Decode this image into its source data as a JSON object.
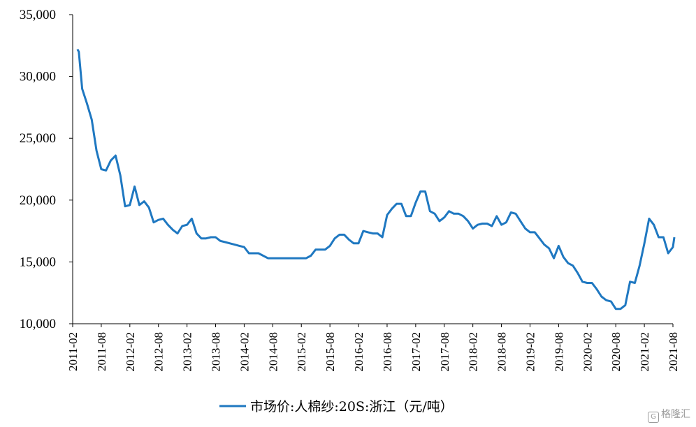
{
  "chart_data": {
    "type": "line",
    "title": "",
    "xlabel": "",
    "ylabel": "",
    "ylim": [
      10000,
      35000
    ],
    "y_ticks": [
      "10,000",
      "15,000",
      "20,000",
      "25,000",
      "30,000",
      "35,000"
    ],
    "x_ticks": [
      "2011-02",
      "2011-08",
      "2012-02",
      "2012-08",
      "2013-02",
      "2013-08",
      "2014-02",
      "2014-08",
      "2015-02",
      "2015-08",
      "2016-02",
      "2016-08",
      "2017-02",
      "2017-08",
      "2018-02",
      "2018-08",
      "2019-02",
      "2019-08",
      "2020-02",
      "2020-08",
      "2021-02",
      "2021-08"
    ],
    "grid": false,
    "legend_position": "bottom-center",
    "series": [
      {
        "name": "市场价:人棉纱:20S:浙江（元/吨）",
        "color": "#1f78c1",
        "points": [
          [
            "2011-03",
            32200
          ],
          [
            "2011-03",
            32000
          ],
          [
            "2011-04",
            29000
          ],
          [
            "2011-05",
            27800
          ],
          [
            "2011-06",
            26500
          ],
          [
            "2011-07",
            24000
          ],
          [
            "2011-08",
            22500
          ],
          [
            "2011-09",
            22400
          ],
          [
            "2011-10",
            23200
          ],
          [
            "2011-11",
            23600
          ],
          [
            "2011-12",
            22000
          ],
          [
            "2012-01",
            19500
          ],
          [
            "2012-02",
            19600
          ],
          [
            "2012-03",
            21100
          ],
          [
            "2012-04",
            19600
          ],
          [
            "2012-05",
            19900
          ],
          [
            "2012-06",
            19400
          ],
          [
            "2012-07",
            18200
          ],
          [
            "2012-08",
            18400
          ],
          [
            "2012-09",
            18500
          ],
          [
            "2012-10",
            18000
          ],
          [
            "2012-11",
            17600
          ],
          [
            "2012-12",
            17300
          ],
          [
            "2013-01",
            17900
          ],
          [
            "2013-02",
            18000
          ],
          [
            "2013-03",
            18500
          ],
          [
            "2013-04",
            17300
          ],
          [
            "2013-05",
            16900
          ],
          [
            "2013-06",
            16900
          ],
          [
            "2013-07",
            17000
          ],
          [
            "2013-08",
            17000
          ],
          [
            "2013-09",
            16700
          ],
          [
            "2013-10",
            16600
          ],
          [
            "2013-11",
            16500
          ],
          [
            "2013-12",
            16400
          ],
          [
            "2014-01",
            16300
          ],
          [
            "2014-02",
            16200
          ],
          [
            "2014-03",
            15700
          ],
          [
            "2014-05",
            15700
          ],
          [
            "2014-07",
            15300
          ],
          [
            "2014-09",
            15300
          ],
          [
            "2014-12",
            15300
          ],
          [
            "2015-03",
            15300
          ],
          [
            "2015-04",
            15500
          ],
          [
            "2015-05",
            16000
          ],
          [
            "2015-07",
            16000
          ],
          [
            "2015-08",
            16300
          ],
          [
            "2015-09",
            16900
          ],
          [
            "2015-10",
            17200
          ],
          [
            "2015-11",
            17200
          ],
          [
            "2015-12",
            16800
          ],
          [
            "2016-01",
            16500
          ],
          [
            "2016-02",
            16500
          ],
          [
            "2016-03",
            17500
          ],
          [
            "2016-04",
            17400
          ],
          [
            "2016-05",
            17300
          ],
          [
            "2016-06",
            17300
          ],
          [
            "2016-07",
            17000
          ],
          [
            "2016-08",
            18800
          ],
          [
            "2016-09",
            19300
          ],
          [
            "2016-10",
            19700
          ],
          [
            "2016-11",
            19700
          ],
          [
            "2016-12",
            18700
          ],
          [
            "2017-01",
            18700
          ],
          [
            "2017-02",
            19800
          ],
          [
            "2017-03",
            20700
          ],
          [
            "2017-04",
            20700
          ],
          [
            "2017-05",
            19100
          ],
          [
            "2017-06",
            18900
          ],
          [
            "2017-07",
            18300
          ],
          [
            "2017-08",
            18600
          ],
          [
            "2017-09",
            19100
          ],
          [
            "2017-10",
            18900
          ],
          [
            "2017-11",
            18900
          ],
          [
            "2017-12",
            18700
          ],
          [
            "2018-01",
            18300
          ],
          [
            "2018-02",
            17700
          ],
          [
            "2018-03",
            18000
          ],
          [
            "2018-04",
            18100
          ],
          [
            "2018-05",
            18100
          ],
          [
            "2018-06",
            17900
          ],
          [
            "2018-07",
            18700
          ],
          [
            "2018-08",
            18000
          ],
          [
            "2018-09",
            18200
          ],
          [
            "2018-10",
            19000
          ],
          [
            "2018-11",
            18900
          ],
          [
            "2018-12",
            18300
          ],
          [
            "2019-01",
            17700
          ],
          [
            "2019-02",
            17400
          ],
          [
            "2019-03",
            17400
          ],
          [
            "2019-04",
            16900
          ],
          [
            "2019-05",
            16400
          ],
          [
            "2019-06",
            16100
          ],
          [
            "2019-07",
            15300
          ],
          [
            "2019-08",
            16300
          ],
          [
            "2019-09",
            15400
          ],
          [
            "2019-10",
            14900
          ],
          [
            "2019-11",
            14700
          ],
          [
            "2019-12",
            14100
          ],
          [
            "2020-01",
            13400
          ],
          [
            "2020-02",
            13300
          ],
          [
            "2020-03",
            13300
          ],
          [
            "2020-04",
            12800
          ],
          [
            "2020-05",
            12200
          ],
          [
            "2020-06",
            11900
          ],
          [
            "2020-07",
            11800
          ],
          [
            "2020-08",
            11200
          ],
          [
            "2020-09",
            11200
          ],
          [
            "2020-10",
            11500
          ],
          [
            "2020-11",
            13400
          ],
          [
            "2020-12",
            13300
          ],
          [
            "2021-01",
            14700
          ],
          [
            "2021-02",
            16500
          ],
          [
            "2021-03",
            18500
          ],
          [
            "2021-04",
            18000
          ],
          [
            "2021-05",
            17000
          ],
          [
            "2021-06",
            17000
          ],
          [
            "2021-07",
            15700
          ],
          [
            "2021-08",
            16200
          ],
          [
            "2021-08",
            17000
          ]
        ]
      }
    ]
  },
  "watermark": {
    "icon": "gelonghui-logo-icon",
    "text": "格隆汇"
  }
}
